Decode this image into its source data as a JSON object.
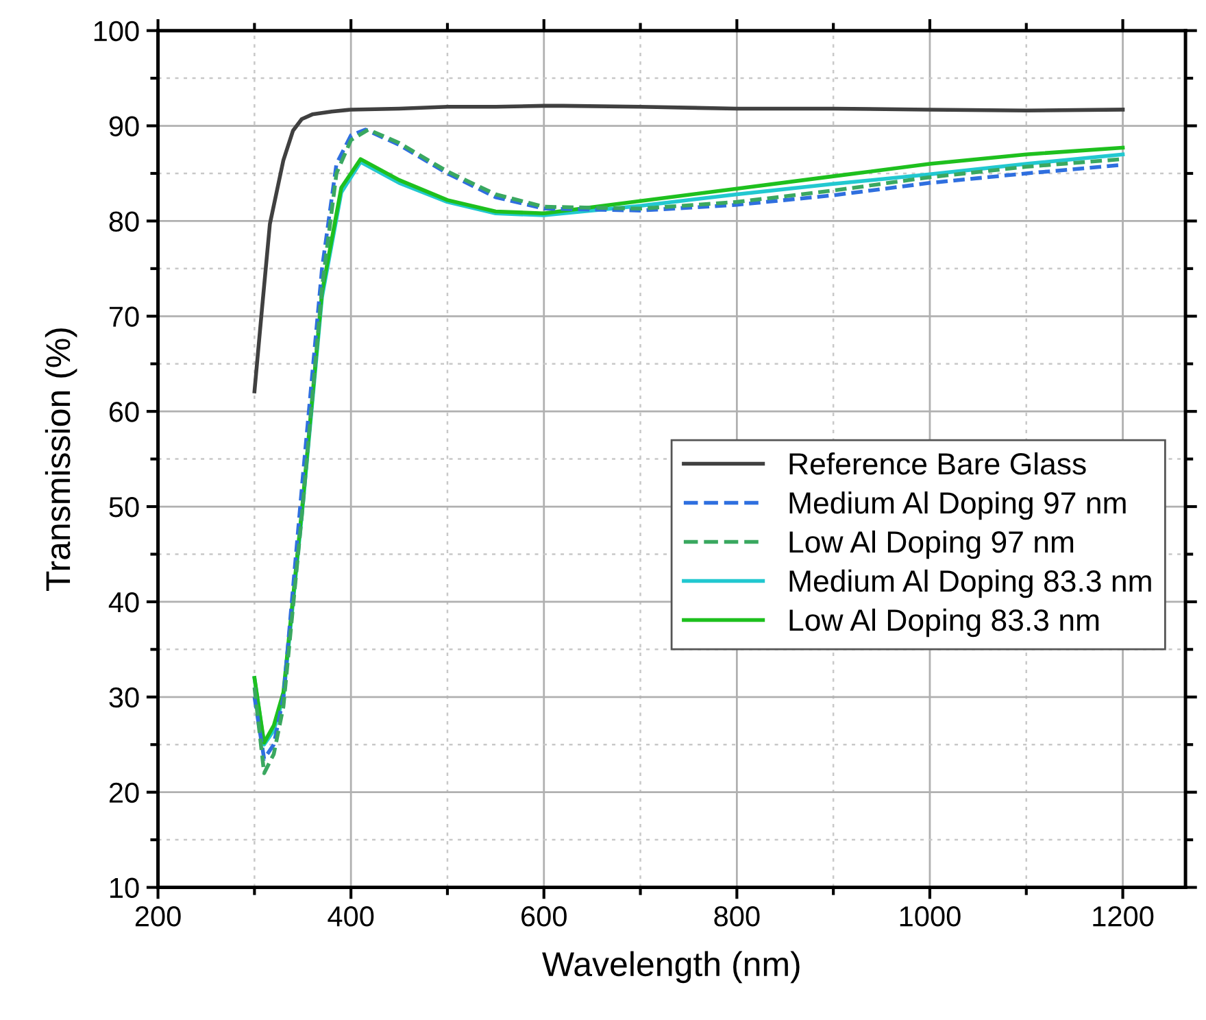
{
  "chart_data": {
    "type": "line",
    "xlabel": "Wavelength (nm)",
    "ylabel": "Transmission (%)",
    "xlim": [
      200,
      1265
    ],
    "ylim": [
      10,
      100
    ],
    "xticks": [
      200,
      {
        "value": 300,
        "label": null
      },
      400,
      {
        "value": 500,
        "label": null
      },
      600,
      {
        "value": 700,
        "label": null
      },
      800,
      {
        "value": 900,
        "label": null
      },
      1000,
      {
        "value": 1100,
        "label": null
      },
      1200
    ],
    "yticks": [
      10,
      {
        "value": 15,
        "label": null
      },
      20,
      {
        "value": 25,
        "label": null
      },
      30,
      {
        "value": 35,
        "label": null
      },
      40,
      {
        "value": 45,
        "label": null
      },
      50,
      {
        "value": 55,
        "label": null
      },
      60,
      {
        "value": 65,
        "label": null
      },
      70,
      {
        "value": 75,
        "label": null
      },
      80,
      {
        "value": 85,
        "label": null
      },
      90,
      {
        "value": 95,
        "label": null
      },
      100
    ],
    "grid": true,
    "legend": "center right",
    "marker": "none",
    "series": [
      {
        "name": "Reference Bare Glass",
        "color": "#404040",
        "line_style": "solid",
        "x": [
          300,
          308,
          316,
          330,
          340,
          349,
          360,
          380,
          400,
          450,
          500,
          550,
          600,
          620,
          700,
          800,
          900,
          1000,
          1100,
          1200
        ],
        "values": [
          62.1,
          71,
          79.7,
          86.4,
          89.5,
          90.7,
          91.2,
          91.5,
          91.7,
          91.8,
          92,
          92,
          92.1,
          92.1,
          92,
          91.8,
          91.8,
          91.7,
          91.6,
          91.7
        ]
      },
      {
        "name": "Medium Al Doping 97 nm",
        "color": "#2f6fdf",
        "line_style": "dashed",
        "x": [
          300,
          310,
          320,
          330,
          350,
          370,
          385,
          400,
          415,
          450,
          500,
          550,
          600,
          700,
          800,
          900,
          1000,
          1100,
          1200
        ],
        "values": [
          30,
          23.5,
          25,
          30,
          53,
          75,
          86,
          89,
          89.6,
          88,
          85,
          82.5,
          81.3,
          81.1,
          81.7,
          82.7,
          84,
          85,
          85.9
        ]
      },
      {
        "name": "Low Al Doping 97 nm",
        "color": "#3aa860",
        "line_style": "dashed",
        "x": [
          300,
          310,
          320,
          330,
          350,
          370,
          385,
          400,
          418,
          450,
          500,
          550,
          600,
          700,
          800,
          900,
          1000,
          1100,
          1200
        ],
        "values": [
          31,
          22,
          24,
          29,
          50,
          73,
          85,
          88.5,
          89.6,
          88.2,
          85.2,
          82.8,
          81.5,
          81.3,
          82,
          83.2,
          84.6,
          85.7,
          86.5
        ]
      },
      {
        "name": "Medium Al Doping 83.3 nm",
        "color": "#22c8d0",
        "line_style": "solid",
        "x": [
          300,
          310,
          320,
          330,
          350,
          370,
          390,
          410,
          450,
          500,
          550,
          600,
          700,
          800,
          900,
          1000,
          1100,
          1200
        ],
        "values": [
          32,
          25,
          26.5,
          30,
          50,
          72,
          83,
          86.2,
          84,
          82,
          80.8,
          80.6,
          81.6,
          82.8,
          83.9,
          84.9,
          86,
          87
        ]
      },
      {
        "name": "Low Al Doping 83.3 nm",
        "color": "#1ec01e",
        "line_style": "solid",
        "x": [
          300,
          310,
          320,
          330,
          350,
          370,
          390,
          410,
          450,
          500,
          550,
          600,
          700,
          800,
          900,
          1000,
          1100,
          1200
        ],
        "values": [
          32,
          25.2,
          27,
          30.5,
          50.5,
          72.5,
          83.5,
          86.5,
          84.3,
          82.2,
          81,
          80.8,
          82.1,
          83.4,
          84.7,
          86,
          87,
          87.7
        ]
      }
    ]
  }
}
